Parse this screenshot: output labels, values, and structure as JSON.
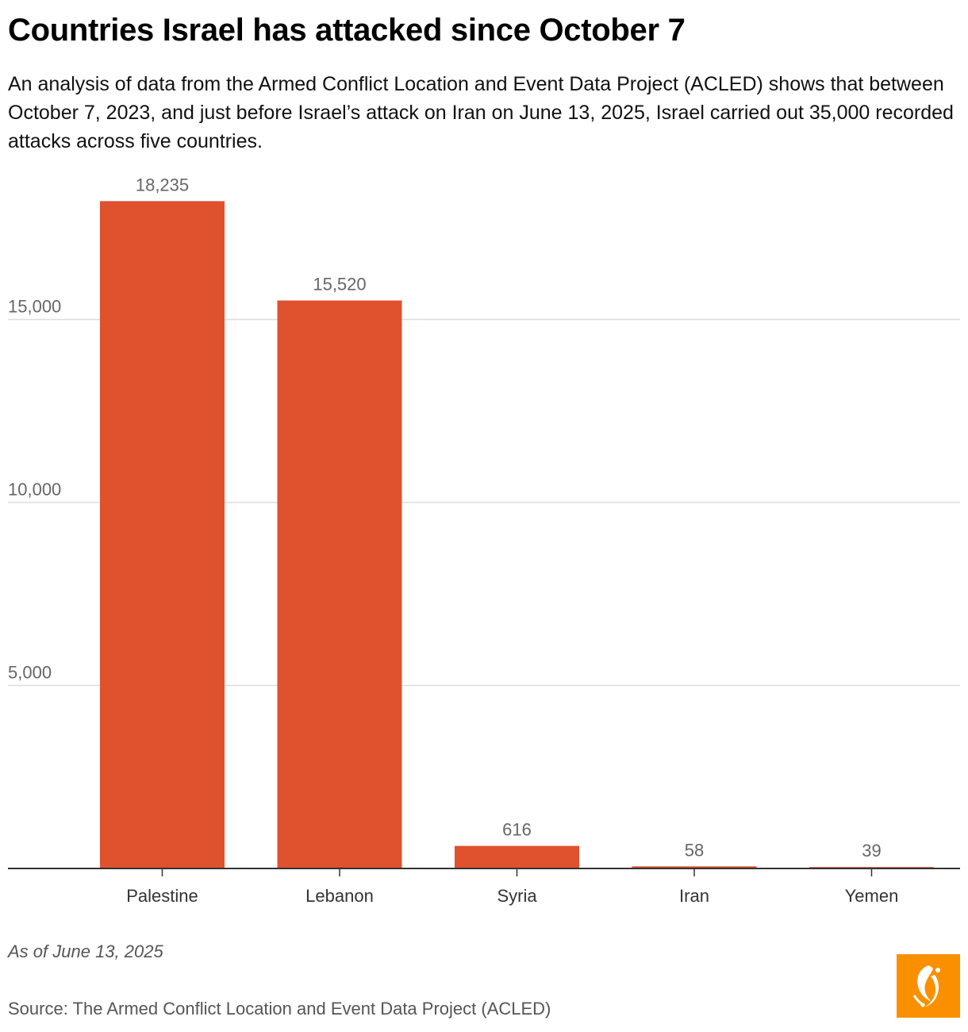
{
  "header": {
    "title": "Countries Israel has attacked since October 7",
    "subtitle": "An analysis of data from the Armed Conflict Location and Event Data Project (ACLED) shows that between October 7, 2023, and just before Israel’s attack on Iran on June 13, 2025, Israel carried out 35,000 recorded attacks across five countries."
  },
  "footer": {
    "note": "As of June 13, 2025",
    "source": "Source: The Armed Conflict Location and Event Data Project (ACLED)",
    "logo_icon": "al-jazeera-logo-icon"
  },
  "colors": {
    "bar": "#e0512e",
    "logo_bg": "#fa9000",
    "grid": "#dddddd",
    "axis": "#333333"
  },
  "chart_data": {
    "type": "bar",
    "title": "Countries Israel has attacked since October 7",
    "xlabel": "",
    "ylabel": "",
    "categories": [
      "Palestine",
      "Lebanon",
      "Syria",
      "Iran",
      "Yemen"
    ],
    "values": [
      18235,
      15520,
      616,
      58,
      39
    ],
    "value_labels": [
      "18,235",
      "15,520",
      "616",
      "58",
      "39"
    ],
    "yticks": [
      5000,
      10000,
      15000
    ],
    "ytick_labels": [
      "5,000",
      "10,000",
      "15,000"
    ],
    "ylim": [
      0,
      20000
    ],
    "grid": true
  }
}
